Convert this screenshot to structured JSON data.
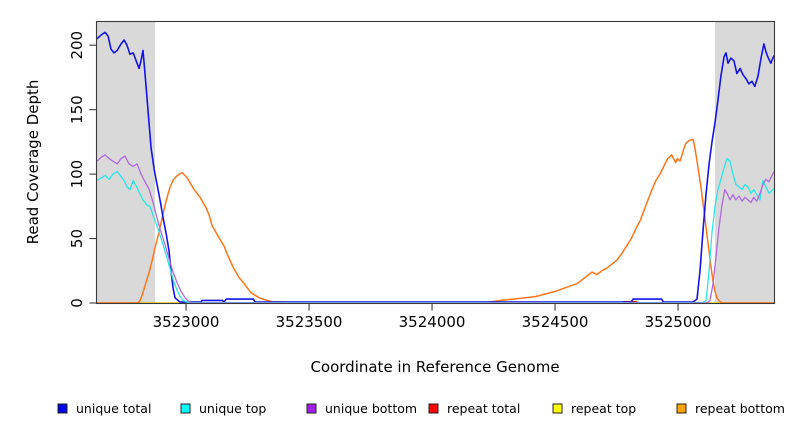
{
  "chart_data": {
    "type": "line",
    "title": "",
    "xlabel": "Coordinate in Reference Genome",
    "ylabel": "Read Coverage Depth",
    "xlim": [
      3522638,
      3525390
    ],
    "ylim": [
      0,
      218
    ],
    "x_ticks": [
      3523000,
      3523500,
      3524000,
      3524500,
      3525000
    ],
    "y_ticks": [
      0,
      50,
      100,
      150,
      200
    ],
    "grid": false,
    "legend_position": "bottom",
    "highlight_color": "#D9D9D9",
    "highlight_regions": [
      {
        "start": 3522638,
        "end": 3522874
      },
      {
        "start": 3525150,
        "end": 3525390
      }
    ],
    "series": [
      {
        "name": "unique total",
        "color": "#1414E8",
        "legend_color": "#0000EE",
        "width": 1.6,
        "points": [
          [
            3522638,
            205
          ],
          [
            3522655,
            208
          ],
          [
            3522671,
            210
          ],
          [
            3522683,
            207
          ],
          [
            3522695,
            197
          ],
          [
            3522707,
            194
          ],
          [
            3522720,
            196
          ],
          [
            3522736,
            201
          ],
          [
            3522748,
            204
          ],
          [
            3522760,
            200
          ],
          [
            3522772,
            193
          ],
          [
            3522785,
            194
          ],
          [
            3522797,
            188
          ],
          [
            3522809,
            182
          ],
          [
            3522817,
            188
          ],
          [
            3522825,
            196
          ],
          [
            3522833,
            178
          ],
          [
            3522841,
            160
          ],
          [
            3522850,
            138
          ],
          [
            3522858,
            120
          ],
          [
            3522870,
            104
          ],
          [
            3522882,
            92
          ],
          [
            3522894,
            80
          ],
          [
            3522906,
            67
          ],
          [
            3522919,
            54
          ],
          [
            3522931,
            40
          ],
          [
            3522939,
            25
          ],
          [
            3522947,
            12
          ],
          [
            3522955,
            4
          ],
          [
            3522976,
            0.7
          ],
          [
            3523060,
            0.7
          ],
          [
            3523066,
            2
          ],
          [
            3523148,
            2
          ],
          [
            3523154,
            0.7
          ],
          [
            3523163,
            3
          ],
          [
            3523274,
            3
          ],
          [
            3523281,
            0.7
          ],
          [
            3524810,
            0.7
          ],
          [
            3524817,
            3
          ],
          [
            3524933,
            3
          ],
          [
            3524941,
            0.7
          ],
          [
            3525060,
            0.7
          ],
          [
            3525077,
            3
          ],
          [
            3525089,
            25
          ],
          [
            3525101,
            55
          ],
          [
            3525114,
            85
          ],
          [
            3525126,
            108
          ],
          [
            3525138,
            125
          ],
          [
            3525150,
            140
          ],
          [
            3525162,
            157
          ],
          [
            3525174,
            176
          ],
          [
            3525187,
            191
          ],
          [
            3525195,
            194
          ],
          [
            3525203,
            186
          ],
          [
            3525215,
            190
          ],
          [
            3525227,
            188
          ],
          [
            3525239,
            178
          ],
          [
            3525252,
            182
          ],
          [
            3525264,
            177
          ],
          [
            3525276,
            174
          ],
          [
            3525288,
            170
          ],
          [
            3525300,
            172
          ],
          [
            3525312,
            168
          ],
          [
            3525325,
            176
          ],
          [
            3525337,
            190
          ],
          [
            3525349,
            201
          ],
          [
            3525357,
            195
          ],
          [
            3525365,
            191
          ],
          [
            3525377,
            186
          ],
          [
            3525390,
            192
          ]
        ]
      },
      {
        "name": "unique top",
        "color": "#2AE6E6",
        "legend_color": "#00FFFF",
        "width": 1.3,
        "points": [
          [
            3522638,
            95
          ],
          [
            3522655,
            97
          ],
          [
            3522671,
            99
          ],
          [
            3522687,
            96
          ],
          [
            3522703,
            100
          ],
          [
            3522720,
            102
          ],
          [
            3522736,
            98
          ],
          [
            3522748,
            95
          ],
          [
            3522760,
            90
          ],
          [
            3522772,
            88
          ],
          [
            3522785,
            95
          ],
          [
            3522797,
            91
          ],
          [
            3522809,
            86
          ],
          [
            3522825,
            80
          ],
          [
            3522841,
            76
          ],
          [
            3522854,
            75
          ],
          [
            3522866,
            68
          ],
          [
            3522878,
            62
          ],
          [
            3522890,
            55
          ],
          [
            3522902,
            48
          ],
          [
            3522915,
            40
          ],
          [
            3522927,
            32
          ],
          [
            3522939,
            24
          ],
          [
            3522951,
            16
          ],
          [
            3522963,
            10
          ],
          [
            3522976,
            5
          ],
          [
            3522988,
            2
          ],
          [
            3523000,
            1
          ],
          [
            3523015,
            0.3
          ],
          [
            3525100,
            0.3
          ],
          [
            3525114,
            2
          ],
          [
            3525126,
            25
          ],
          [
            3525138,
            55
          ],
          [
            3525150,
            75
          ],
          [
            3525162,
            88
          ],
          [
            3525174,
            96
          ],
          [
            3525187,
            105
          ],
          [
            3525199,
            112
          ],
          [
            3525211,
            110
          ],
          [
            3525223,
            100
          ],
          [
            3525235,
            92
          ],
          [
            3525248,
            90
          ],
          [
            3525260,
            88
          ],
          [
            3525272,
            92
          ],
          [
            3525284,
            90
          ],
          [
            3525296,
            85
          ],
          [
            3525308,
            88
          ],
          [
            3525320,
            84
          ],
          [
            3525333,
            80
          ],
          [
            3525345,
            95
          ],
          [
            3525357,
            90
          ],
          [
            3525370,
            85
          ],
          [
            3525390,
            89
          ]
        ]
      },
      {
        "name": "unique bottom",
        "color": "#B168E0",
        "legend_color": "#A020F0",
        "width": 1.3,
        "points": [
          [
            3522638,
            110
          ],
          [
            3522655,
            113
          ],
          [
            3522671,
            115
          ],
          [
            3522687,
            112
          ],
          [
            3522703,
            110
          ],
          [
            3522720,
            108
          ],
          [
            3522736,
            112
          ],
          [
            3522752,
            114
          ],
          [
            3522768,
            108
          ],
          [
            3522785,
            106
          ],
          [
            3522801,
            108
          ],
          [
            3522817,
            100
          ],
          [
            3522833,
            94
          ],
          [
            3522850,
            88
          ],
          [
            3522866,
            78
          ],
          [
            3522882,
            66
          ],
          [
            3522898,
            55
          ],
          [
            3522915,
            45
          ],
          [
            3522931,
            34
          ],
          [
            3522947,
            24
          ],
          [
            3522963,
            16
          ],
          [
            3522980,
            9
          ],
          [
            3522996,
            4
          ],
          [
            3523012,
            1
          ],
          [
            3523026,
            0
          ],
          [
            3525118,
            0
          ],
          [
            3525130,
            2
          ],
          [
            3525142,
            15
          ],
          [
            3525154,
            35
          ],
          [
            3525166,
            58
          ],
          [
            3525178,
            75
          ],
          [
            3525190,
            88
          ],
          [
            3525199,
            85
          ],
          [
            3525211,
            80
          ],
          [
            3525223,
            84
          ],
          [
            3525235,
            80
          ],
          [
            3525248,
            83
          ],
          [
            3525260,
            79
          ],
          [
            3525272,
            82
          ],
          [
            3525284,
            80
          ],
          [
            3525296,
            78
          ],
          [
            3525308,
            82
          ],
          [
            3525320,
            79
          ],
          [
            3525333,
            85
          ],
          [
            3525345,
            92
          ],
          [
            3525357,
            96
          ],
          [
            3525369,
            94
          ],
          [
            3525390,
            102
          ]
        ]
      },
      {
        "name": "repeat total",
        "color": "#E60000",
        "legend_color": "#FF0000",
        "width": 1.3,
        "points": [
          [
            3522638,
            0
          ],
          [
            3524770,
            0
          ],
          [
            3524778,
            1
          ],
          [
            3524830,
            1
          ],
          [
            3524838,
            0
          ],
          [
            3525390,
            0
          ]
        ]
      },
      {
        "name": "repeat top",
        "color": "#E8E800",
        "legend_color": "#FFFF00",
        "width": 1.3,
        "points": [
          [
            3522638,
            0
          ],
          [
            3525390,
            0
          ]
        ]
      },
      {
        "name": "repeat bottom",
        "color": "#FF761A",
        "legend_color": "#FFA500",
        "width": 1.5,
        "points": [
          [
            3522638,
            0
          ],
          [
            3522805,
            0
          ],
          [
            3522813,
            2
          ],
          [
            3522825,
            8
          ],
          [
            3522837,
            16
          ],
          [
            3522850,
            24
          ],
          [
            3522862,
            33
          ],
          [
            3522874,
            43
          ],
          [
            3522886,
            52
          ],
          [
            3522898,
            62
          ],
          [
            3522910,
            72
          ],
          [
            3522923,
            82
          ],
          [
            3522935,
            90
          ],
          [
            3522947,
            95
          ],
          [
            3522959,
            98
          ],
          [
            3522972,
            100
          ],
          [
            3522984,
            101
          ],
          [
            3522996,
            99
          ],
          [
            3523008,
            96
          ],
          [
            3523020,
            92
          ],
          [
            3523033,
            88
          ],
          [
            3523045,
            85
          ],
          [
            3523057,
            82
          ],
          [
            3523069,
            78
          ],
          [
            3523081,
            74
          ],
          [
            3523094,
            68
          ],
          [
            3523106,
            60
          ],
          [
            3523118,
            56
          ],
          [
            3523130,
            52
          ],
          [
            3523142,
            48
          ],
          [
            3523155,
            44
          ],
          [
            3523167,
            38
          ],
          [
            3523179,
            33
          ],
          [
            3523191,
            28
          ],
          [
            3523203,
            24
          ],
          [
            3523215,
            20
          ],
          [
            3523228,
            17
          ],
          [
            3523240,
            14
          ],
          [
            3523252,
            11
          ],
          [
            3523264,
            8
          ],
          [
            3523281,
            6
          ],
          [
            3523297,
            4
          ],
          [
            3523313,
            3
          ],
          [
            3523330,
            2
          ],
          [
            3523350,
            1
          ],
          [
            3523443,
            0.5
          ],
          [
            3524224,
            0.5
          ],
          [
            3524280,
            2
          ],
          [
            3524330,
            3
          ],
          [
            3524380,
            4
          ],
          [
            3524420,
            5
          ],
          [
            3524460,
            7
          ],
          [
            3524500,
            9
          ],
          [
            3524530,
            11
          ],
          [
            3524560,
            13
          ],
          [
            3524590,
            15
          ],
          [
            3524610,
            18
          ],
          [
            3524630,
            21
          ],
          [
            3524650,
            24
          ],
          [
            3524670,
            22
          ],
          [
            3524690,
            25
          ],
          [
            3524710,
            27
          ],
          [
            3524730,
            30
          ],
          [
            3524750,
            33
          ],
          [
            3524770,
            38
          ],
          [
            3524790,
            44
          ],
          [
            3524810,
            50
          ],
          [
            3524830,
            58
          ],
          [
            3524846,
            64
          ],
          [
            3524862,
            72
          ],
          [
            3524878,
            80
          ],
          [
            3524894,
            88
          ],
          [
            3524910,
            95
          ],
          [
            3524926,
            100
          ],
          [
            3524942,
            106
          ],
          [
            3524958,
            112
          ],
          [
            3524974,
            115
          ],
          [
            3524990,
            109
          ],
          [
            3524998,
            112
          ],
          [
            3525008,
            110
          ],
          [
            3525016,
            115
          ],
          [
            3525024,
            120
          ],
          [
            3525032,
            124
          ],
          [
            3525045,
            126
          ],
          [
            3525061,
            127
          ],
          [
            3525069,
            120
          ],
          [
            3525077,
            110
          ],
          [
            3525085,
            100
          ],
          [
            3525093,
            90
          ],
          [
            3525101,
            78
          ],
          [
            3525110,
            65
          ],
          [
            3525118,
            52
          ],
          [
            3525126,
            40
          ],
          [
            3525134,
            28
          ],
          [
            3525142,
            17
          ],
          [
            3525150,
            9
          ],
          [
            3525158,
            4
          ],
          [
            3525170,
            1
          ],
          [
            3525182,
            0
          ],
          [
            3525390,
            0
          ]
        ]
      }
    ]
  }
}
